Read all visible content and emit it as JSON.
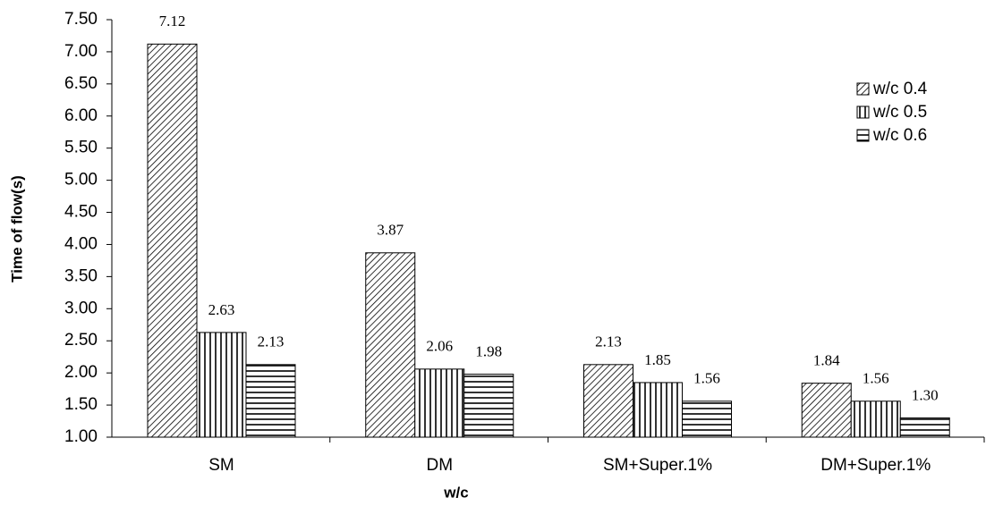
{
  "chart_data": {
    "type": "bar",
    "x_label": "w/c",
    "y_label": "Time of flow(s)",
    "categories": [
      "SM",
      "DM",
      "SM+Super.1%",
      "DM+Super.1%"
    ],
    "series": [
      {
        "name": "w/c 0.4",
        "color": "#000000",
        "values": [
          7.12,
          3.87,
          2.13,
          1.84
        ],
        "value_labels": [
          "7.12",
          "3.87",
          "2.13",
          "1.84"
        ]
      },
      {
        "name": "w/c 0.5",
        "color": "#000000",
        "values": [
          2.63,
          2.06,
          1.85,
          1.56
        ],
        "value_labels": [
          "2.63",
          "2.06",
          "1.85",
          "1.56"
        ]
      },
      {
        "name": "w/c 0.6",
        "color": "#000000",
        "values": [
          2.13,
          1.98,
          1.56,
          1.3
        ],
        "value_labels": [
          "2.13",
          "1.98",
          "1.56",
          "1.30"
        ]
      }
    ],
    "ylim": [
      1,
      7.5
    ],
    "yticks": [
      {
        "value": 1,
        "label": "1.00"
      },
      {
        "value": 1.5,
        "label": "1.50"
      },
      {
        "value": 2,
        "label": "2.00"
      },
      {
        "value": 2.5,
        "label": "2.50"
      },
      {
        "value": 3,
        "label": "3.00"
      },
      {
        "value": 3.5,
        "label": "3.50"
      },
      {
        "value": 4,
        "label": "4.00"
      },
      {
        "value": 4.5,
        "label": "4.50"
      },
      {
        "value": 5,
        "label": "5.00"
      },
      {
        "value": 5.5,
        "label": "5.50"
      },
      {
        "value": 6,
        "label": "6.00"
      },
      {
        "value": 6.5,
        "label": "6.50"
      },
      {
        "value": 7,
        "label": "7.00"
      },
      {
        "value": 7.5,
        "label": "7.50"
      }
    ],
    "grid": false,
    "legend": "upper right"
  }
}
